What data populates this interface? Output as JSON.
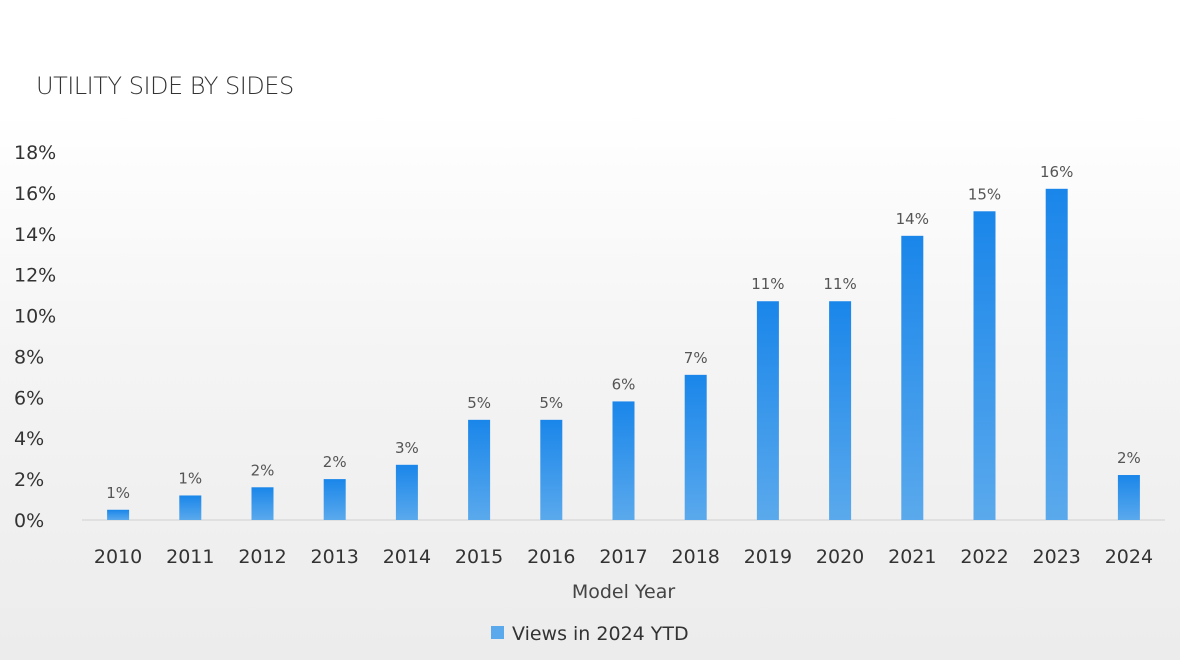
{
  "header": {
    "title": "UTILITY SIDE BY SIDES"
  },
  "colors": {
    "bar_top": "#1a86ea",
    "bar_bottom": "#5aa9ec",
    "axis": "#d0d0d0"
  },
  "chart_data": {
    "type": "bar",
    "title": "UTILITY SIDE BY SIDES",
    "xlabel": "Model Year",
    "ylabel": "",
    "ylim": [
      0,
      18
    ],
    "y_ticks": [
      "0%",
      "2%",
      "4%",
      "6%",
      "8%",
      "10%",
      "12%",
      "14%",
      "16%",
      "18%"
    ],
    "y_tick_values": [
      0,
      2,
      4,
      6,
      8,
      10,
      12,
      14,
      16,
      18
    ],
    "grid": false,
    "legend_position": "bottom",
    "categories": [
      "2010",
      "2011",
      "2012",
      "2013",
      "2014",
      "2015",
      "2016",
      "2017",
      "2018",
      "2019",
      "2020",
      "2021",
      "2022",
      "2023",
      "2024"
    ],
    "series": [
      {
        "name": "Views in 2024 YTD",
        "values": [
          0.5,
          1.2,
          1.6,
          2.0,
          2.7,
          4.9,
          4.9,
          5.8,
          7.1,
          10.7,
          10.7,
          13.9,
          15.1,
          16.2,
          2.2
        ],
        "labels": [
          "1%",
          "1%",
          "2%",
          "2%",
          "3%",
          "5%",
          "5%",
          "6%",
          "7%",
          "11%",
          "11%",
          "14%",
          "15%",
          "16%",
          "2%"
        ]
      }
    ]
  }
}
